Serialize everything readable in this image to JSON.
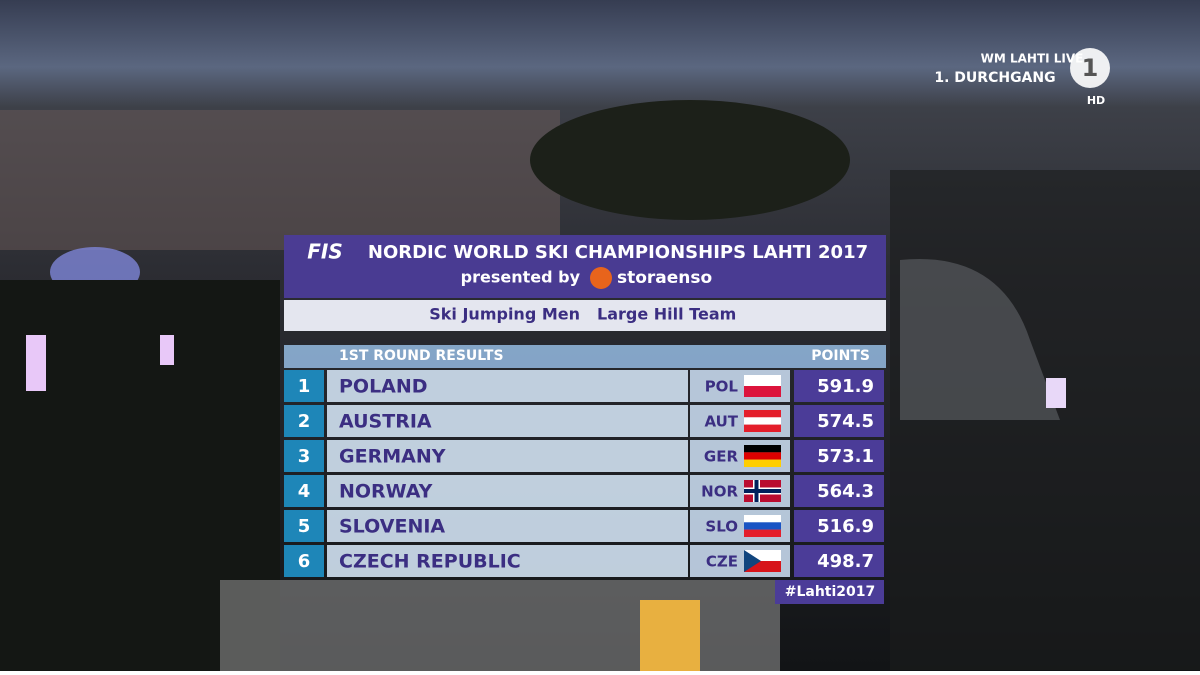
{
  "broadcast": {
    "line1": "WM LAHTI LIVE",
    "line2": "1. DURCHGANG",
    "channel": "1",
    "quality": "HD"
  },
  "header": {
    "logo": "FIS",
    "title": "NORDIC WORLD SKI CHAMPIONSHIPS LAHTI 2017",
    "presented_by": "presented by",
    "sponsor": "storaenso",
    "event": "Ski Jumping Men",
    "competition": "Large Hill Team"
  },
  "table": {
    "columns": [
      "1ST ROUND RESULTS",
      "POINTS"
    ],
    "rows": [
      {
        "rank": 1,
        "country": "POLAND",
        "code": "POL",
        "points": 591.9
      },
      {
        "rank": 2,
        "country": "AUSTRIA",
        "code": "AUT",
        "points": 574.5
      },
      {
        "rank": 3,
        "country": "GERMANY",
        "code": "GER",
        "points": 573.1
      },
      {
        "rank": 4,
        "country": "NORWAY",
        "code": "NOR",
        "points": 564.3
      },
      {
        "rank": 5,
        "country": "SLOVENIA",
        "code": "SLO",
        "points": 516.9
      },
      {
        "rank": 6,
        "country": "CZECH REPUBLIC",
        "code": "CZE",
        "points": 498.7
      }
    ]
  },
  "hashtag": "#Lahti2017"
}
